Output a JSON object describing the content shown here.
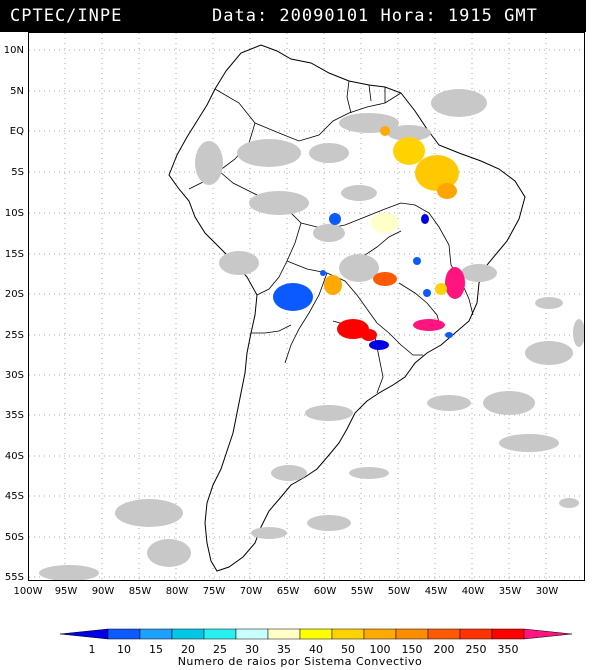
{
  "header": {
    "left": "CPTEC/INPE",
    "right": "Data: 20090101 Hora: 1915 GMT"
  },
  "lat_labels": [
    "10N",
    "5N",
    "EQ",
    "5S",
    "10S",
    "15S",
    "20S",
    "25S",
    "30S",
    "35S",
    "40S",
    "45S",
    "50S",
    "55S"
  ],
  "lon_labels": [
    "100W",
    "95W",
    "90W",
    "85W",
    "80W",
    "75W",
    "70W",
    "65W",
    "60W",
    "55W",
    "50W",
    "45W",
    "40W",
    "35W",
    "30W"
  ],
  "colorbar": {
    "ticks": [
      "1",
      "10",
      "15",
      "20",
      "25",
      "30",
      "35",
      "40",
      "50",
      "100",
      "150",
      "200",
      "250",
      "350"
    ],
    "colors": [
      "#0000e6",
      "#0a5aff",
      "#1ea0ff",
      "#00c8e6",
      "#28f0f0",
      "#c8ffff",
      "#ffffc8",
      "#ffff00",
      "#ffd200",
      "#ffaa00",
      "#ff8c00",
      "#ff5a00",
      "#ff3200",
      "#ff0000",
      "#ff1480"
    ],
    "caption": "Numero de raios por Sistema Convectivo"
  },
  "map": {
    "cloud_color": "#c8c8c8",
    "grid_color": "#aaaaaa"
  }
}
